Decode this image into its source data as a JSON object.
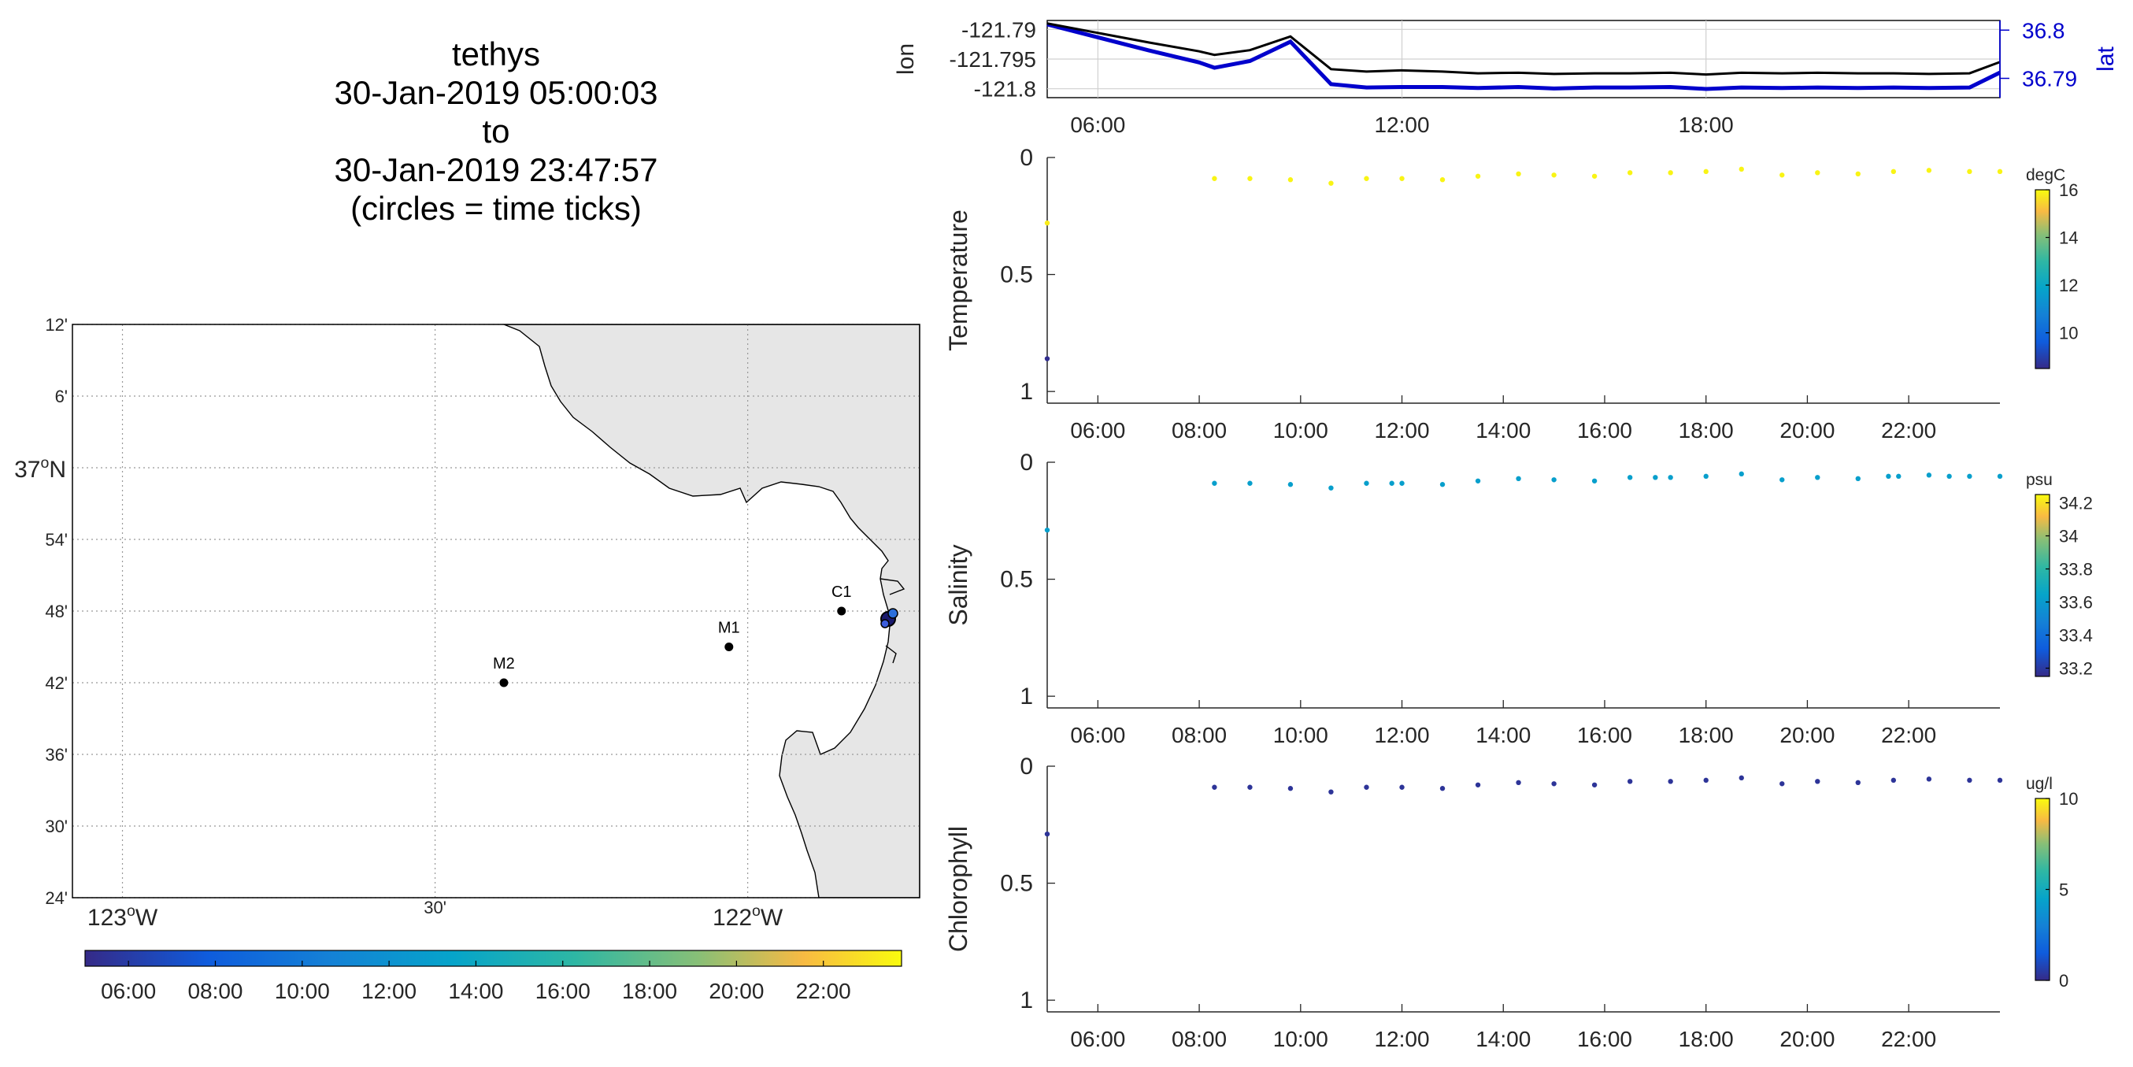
{
  "title_lines": [
    "tethys",
    "30-Jan-2019 05:00:03",
    "to",
    "30-Jan-2019 23:47:57",
    "(circles = time ticks)"
  ],
  "colors": {
    "ocean": "#ffffff",
    "land": "#e6e6e6",
    "lon_line": "#000000",
    "lat_line": "#0000cc",
    "axis_blue": "#0000cc"
  },
  "map": {
    "lat_ticks": [
      "12'",
      "6'",
      "37°N",
      "54'",
      "48'",
      "42'",
      "36'",
      "30'",
      "24'"
    ],
    "lon_ticks": [
      "123°W",
      "30'",
      "122°W"
    ],
    "stations": [
      {
        "name": "M2",
        "lon": -122.39,
        "lat": 36.7
      },
      {
        "name": "M1",
        "lon": -122.03,
        "lat": 36.75
      },
      {
        "name": "C1",
        "lon": -121.85,
        "lat": 36.8
      }
    ],
    "colorbar_ticks": [
      "06:00",
      "08:00",
      "10:00",
      "12:00",
      "14:00",
      "16:00",
      "18:00",
      "20:00",
      "22:00"
    ]
  },
  "chart_data": [
    {
      "type": "line",
      "ylabel": "lon",
      "ylabel_right": "lat",
      "x_ticks": [
        "06:00",
        "12:00",
        "18:00"
      ],
      "yticks_left": [
        "-121.79",
        "-121.795",
        "-121.8"
      ],
      "yticks_right": [
        "36.8",
        "36.79"
      ],
      "xlim_hours": [
        5.0,
        23.8
      ],
      "ylim_lon": [
        -121.8015,
        -121.7885
      ],
      "ylim_lat": [
        36.786,
        36.802
      ],
      "series": [
        {
          "x": [
            5.0,
            6.0,
            7.0,
            8.0,
            8.3,
            9.0,
            9.8,
            10.6,
            11.3,
            12.0,
            12.8,
            13.5,
            14.3,
            15.0,
            15.8,
            16.5,
            17.3,
            18.0,
            18.7,
            19.5,
            20.2,
            21.0,
            21.7,
            22.4,
            23.2,
            23.8
          ],
          "values": [
            -121.789,
            -121.7906,
            -121.7922,
            -121.7937,
            -121.7943,
            -121.7935,
            -121.7912,
            -121.7967,
            -121.7971,
            -121.7969,
            -121.7971,
            -121.7974,
            -121.7973,
            -121.7975,
            -121.7974,
            -121.7974,
            -121.7973,
            -121.7976,
            -121.7973,
            -121.7974,
            -121.7973,
            -121.7974,
            -121.7974,
            -121.7975,
            -121.7974,
            -121.7955
          ]
        },
        {
          "x": [
            5.0,
            6.0,
            7.0,
            8.0,
            8.3,
            9.0,
            9.8,
            10.6,
            11.3,
            12.0,
            12.8,
            13.5,
            14.3,
            15.0,
            15.8,
            16.5,
            17.3,
            18.0,
            18.7,
            19.5,
            20.2,
            21.0,
            21.7,
            22.4,
            23.2,
            23.8
          ],
          "values": [
            36.8012,
            36.7985,
            36.7958,
            36.7933,
            36.7922,
            36.7936,
            36.7976,
            36.7888,
            36.7881,
            36.7882,
            36.7882,
            36.788,
            36.7882,
            36.7879,
            36.7881,
            36.7881,
            36.7882,
            36.7878,
            36.7881,
            36.788,
            36.7881,
            36.788,
            36.7881,
            36.788,
            36.7881,
            36.7912
          ]
        }
      ]
    },
    {
      "type": "scatter",
      "ylabel": "Temperature",
      "colorbar_label": "degC",
      "colorbar_ticks": [
        "16",
        "14",
        "12",
        "10"
      ],
      "colorbar_range": [
        8.5,
        16.0
      ],
      "yticks": [
        "0",
        "0.5",
        "1"
      ],
      "ylim": [
        0,
        1.05
      ],
      "x_ticks": [
        "06:00",
        "08:00",
        "10:00",
        "12:00",
        "14:00",
        "16:00",
        "18:00",
        "20:00",
        "22:00"
      ],
      "xlim_hours": [
        5.0,
        23.8
      ],
      "x": [
        5.0,
        5.0,
        8.3,
        9.0,
        9.8,
        10.6,
        11.3,
        12.0,
        12.8,
        13.5,
        14.3,
        15.0,
        15.8,
        16.5,
        17.3,
        18.0,
        18.7,
        19.5,
        20.2,
        21.0,
        21.7,
        22.4,
        23.2,
        23.8
      ],
      "y": [
        0.28,
        0.86,
        0.09,
        0.09,
        0.095,
        0.11,
        0.09,
        0.09,
        0.095,
        0.08,
        0.07,
        0.075,
        0.08,
        0.065,
        0.065,
        0.06,
        0.05,
        0.075,
        0.065,
        0.07,
        0.06,
        0.055,
        0.06,
        0.06
      ],
      "c": [
        15.8,
        8.6,
        15.9,
        15.9,
        15.9,
        15.9,
        15.9,
        15.9,
        15.9,
        15.9,
        15.9,
        15.9,
        15.9,
        15.9,
        15.9,
        15.9,
        15.9,
        15.9,
        15.9,
        15.9,
        15.9,
        15.9,
        15.9,
        15.9
      ]
    },
    {
      "type": "scatter",
      "ylabel": "Salinity",
      "colorbar_label": "psu",
      "colorbar_ticks": [
        "34.2",
        "34",
        "33.8",
        "33.6",
        "33.4",
        "33.2"
      ],
      "colorbar_range": [
        33.15,
        34.25
      ],
      "yticks": [
        "0",
        "0.5",
        "1"
      ],
      "ylim": [
        0,
        1.05
      ],
      "x_ticks": [
        "06:00",
        "08:00",
        "10:00",
        "12:00",
        "14:00",
        "16:00",
        "18:00",
        "20:00",
        "22:00"
      ],
      "xlim_hours": [
        5.0,
        23.8
      ],
      "x": [
        5.0,
        8.3,
        9.0,
        9.8,
        10.6,
        11.3,
        11.8,
        12.0,
        12.8,
        13.5,
        14.3,
        15.0,
        15.8,
        16.5,
        17.0,
        17.3,
        18.0,
        18.7,
        19.5,
        20.2,
        21.0,
        21.6,
        21.8,
        22.4,
        22.8,
        23.2,
        23.8
      ],
      "y": [
        0.29,
        0.09,
        0.09,
        0.095,
        0.11,
        0.09,
        0.09,
        0.09,
        0.095,
        0.08,
        0.07,
        0.075,
        0.08,
        0.065,
        0.065,
        0.065,
        0.06,
        0.05,
        0.075,
        0.065,
        0.07,
        0.06,
        0.06,
        0.055,
        0.06,
        0.06,
        0.06
      ],
      "c": [
        33.62,
        33.62,
        33.62,
        33.62,
        33.62,
        33.62,
        33.62,
        33.62,
        33.62,
        33.62,
        33.62,
        33.62,
        33.62,
        33.62,
        33.62,
        33.62,
        33.62,
        33.62,
        33.62,
        33.62,
        33.62,
        33.62,
        33.62,
        33.62,
        33.62,
        33.62,
        33.62
      ]
    },
    {
      "type": "scatter",
      "ylabel": "Chlorophyll",
      "colorbar_label": "ug/l",
      "colorbar_ticks": [
        "10",
        "5",
        "0"
      ],
      "colorbar_range": [
        0,
        10
      ],
      "yticks": [
        "0",
        "0.5",
        "1"
      ],
      "ylim": [
        0,
        1.05
      ],
      "x_ticks": [
        "06:00",
        "08:00",
        "10:00",
        "12:00",
        "14:00",
        "16:00",
        "18:00",
        "20:00",
        "22:00"
      ],
      "xlim_hours": [
        5.0,
        23.8
      ],
      "x": [
        5.0,
        8.3,
        9.0,
        9.8,
        10.6,
        11.3,
        12.0,
        12.8,
        13.5,
        14.3,
        15.0,
        15.8,
        16.5,
        17.3,
        18.0,
        18.7,
        19.5,
        20.2,
        21.0,
        21.7,
        22.4,
        23.2,
        23.8
      ],
      "y": [
        0.29,
        0.09,
        0.09,
        0.095,
        0.11,
        0.09,
        0.09,
        0.095,
        0.08,
        0.07,
        0.075,
        0.08,
        0.065,
        0.065,
        0.06,
        0.05,
        0.075,
        0.065,
        0.07,
        0.06,
        0.055,
        0.06,
        0.06
      ],
      "c": [
        0.3,
        0.3,
        0.3,
        0.3,
        0.3,
        0.3,
        0.3,
        0.3,
        0.3,
        0.3,
        0.3,
        0.3,
        0.3,
        0.3,
        0.3,
        0.3,
        0.3,
        0.3,
        0.3,
        0.3,
        0.3,
        0.3,
        0.3
      ]
    }
  ]
}
